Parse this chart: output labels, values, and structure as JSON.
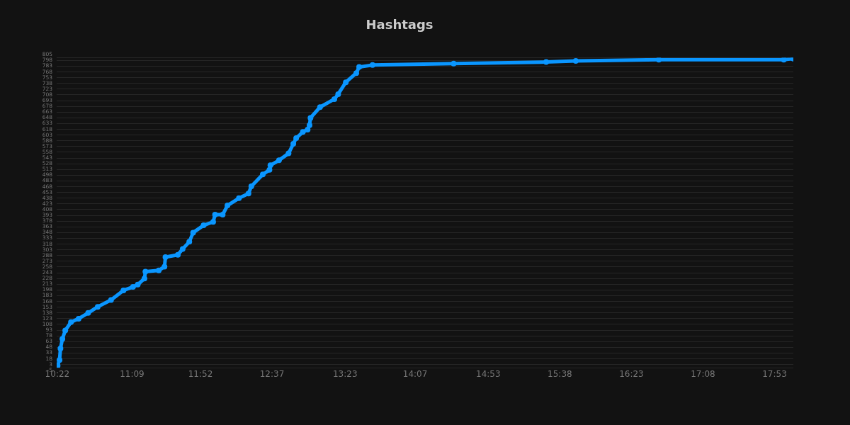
{
  "chart_data": {
    "type": "line",
    "title": "Hashtags",
    "x": [
      10.37,
      10.39,
      10.4,
      10.42,
      10.45,
      10.51,
      10.59,
      10.69,
      10.79,
      10.93,
      11.06,
      11.16,
      11.21,
      11.28,
      11.29,
      11.43,
      11.49,
      11.5,
      11.63,
      11.68,
      11.75,
      11.79,
      11.9,
      12.0,
      12.02,
      12.1,
      12.15,
      12.27,
      12.37,
      12.4,
      12.52,
      12.59,
      12.6,
      12.69,
      12.79,
      12.84,
      12.87,
      12.94,
      12.99,
      13.01,
      13.02,
      13.12,
      13.27,
      13.31,
      13.39,
      13.5,
      13.53,
      13.67,
      14.52,
      15.49,
      15.8,
      16.67,
      17.98,
      18.08
    ],
    "series": [
      {
        "color": "#0a96ff",
        "values": [
          0,
          15,
          45,
          70,
          92,
          114,
          123,
          138,
          154,
          172,
          197,
          206,
          212,
          228,
          246,
          249,
          259,
          284,
          290,
          305,
          324,
          348,
          367,
          376,
          395,
          395,
          419,
          438,
          450,
          469,
          500,
          512,
          524,
          537,
          555,
          580,
          595,
          611,
          617,
          629,
          648,
          676,
          697,
          710,
          741,
          765,
          781,
          786,
          790,
          794,
          797,
          800,
          800,
          803
        ]
      }
    ],
    "xlim": [
      10.36,
      18.08
    ],
    "xticks": [
      {
        "value": 10.3667,
        "label": "10:22"
      },
      {
        "value": 11.15,
        "label": "11:09"
      },
      {
        "value": 11.8667,
        "label": "11:52"
      },
      {
        "value": 12.6167,
        "label": "12:37"
      },
      {
        "value": 13.3833,
        "label": "13:23"
      },
      {
        "value": 14.1167,
        "label": "14:07"
      },
      {
        "value": 14.8833,
        "label": "14:53"
      },
      {
        "value": 15.6333,
        "label": "15:38"
      },
      {
        "value": 16.3833,
        "label": "16:23"
      },
      {
        "value": 17.1333,
        "label": "17:08"
      },
      {
        "value": 17.8833,
        "label": "17:53"
      }
    ],
    "ylim": [
      -5,
      805
    ],
    "yticks": [
      -5,
      3,
      18,
      33,
      48,
      63,
      78,
      93,
      108,
      123,
      138,
      153,
      168,
      183,
      198,
      213,
      228,
      243,
      258,
      273,
      288,
      303,
      318,
      333,
      348,
      363,
      378,
      393,
      408,
      423,
      438,
      453,
      468,
      483,
      498,
      513,
      528,
      543,
      558,
      573,
      588,
      603,
      618,
      633,
      648,
      663,
      678,
      693,
      708,
      723,
      738,
      753,
      768,
      783,
      798,
      805
    ],
    "grid": "y",
    "marker": "circle",
    "legend": false
  }
}
